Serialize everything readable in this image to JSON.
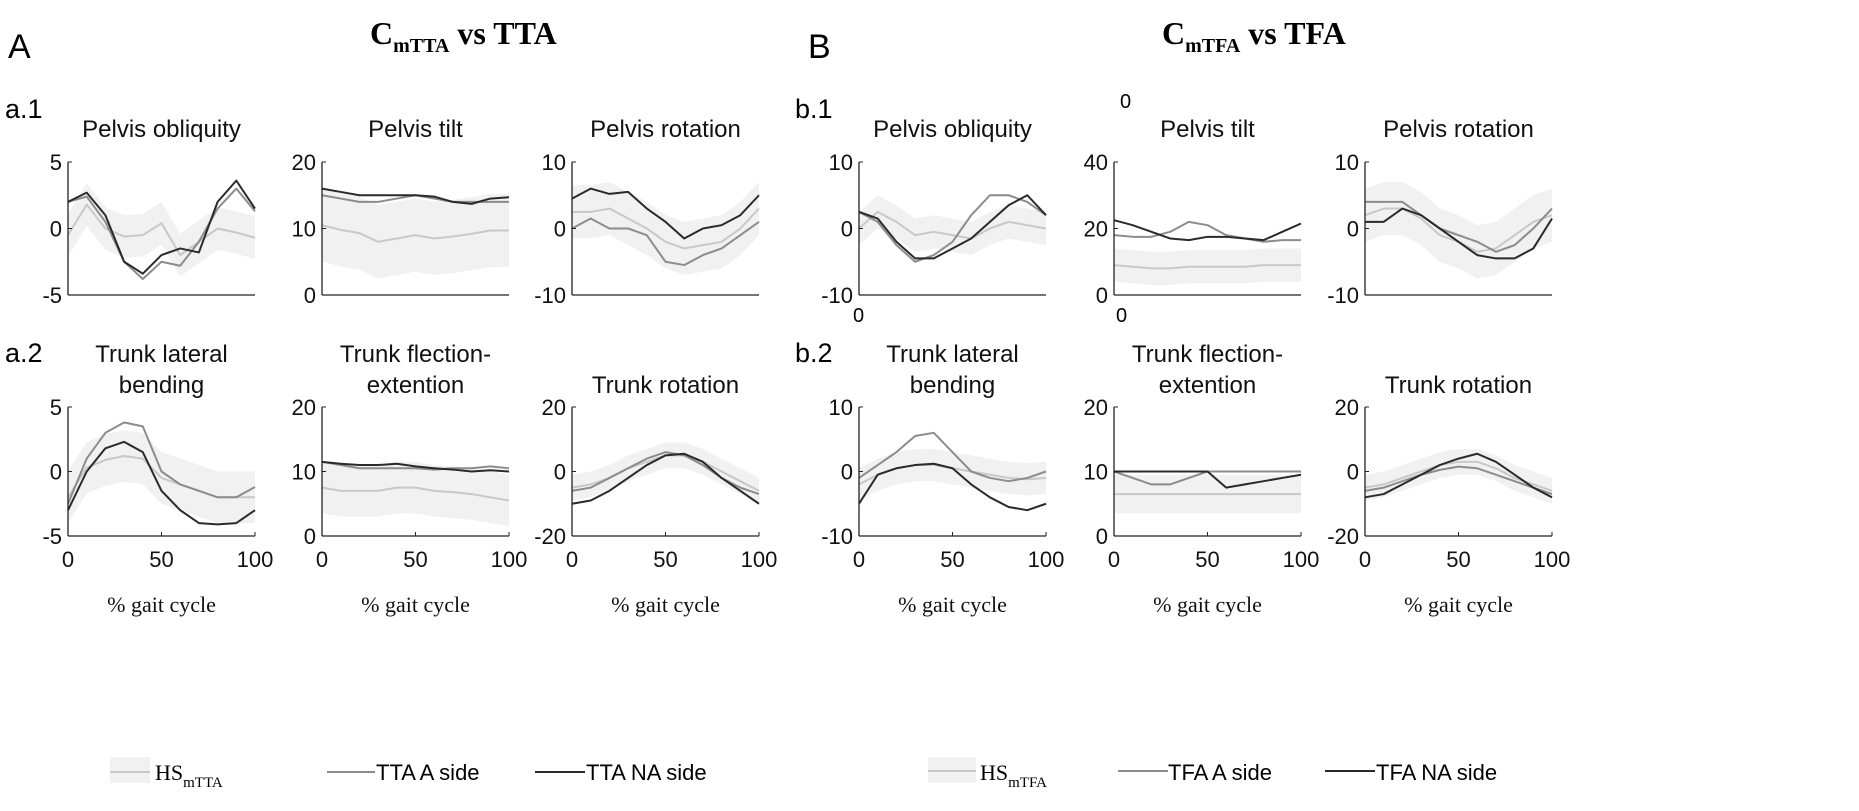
{
  "panels": [
    {
      "letter": "A",
      "title_main": "C",
      "title_sub": "mTTA",
      "title_rest": " vs TTA",
      "row_labels": [
        "a.1",
        "a.2"
      ],
      "legend": {
        "hs_main": "HS",
        "hs_sub": "mTTA",
        "a_side": "TTA A side",
        "na_side": "TTA NA side"
      }
    },
    {
      "letter": "B",
      "title_main": "C",
      "title_sub": "mTFA",
      "title_rest": " vs TFA",
      "row_labels": [
        "b.1",
        "b.2"
      ],
      "legend": {
        "hs_main": "HS",
        "hs_sub": "mTFA",
        "a_side": "TFA A side",
        "na_side": "TFA NA side"
      }
    }
  ],
  "stray_labels": [
    "0",
    "0",
    "0"
  ],
  "colors": {
    "hs_band": "#f1f1f1",
    "hs_line": "#c8c8c8",
    "a_side": "#8c8c8c",
    "na_side": "#2a2a2a"
  },
  "chart_data": [
    {
      "type": "line",
      "panel": "A",
      "title": [
        "Pelvis obliquity"
      ],
      "ylim": [
        -5,
        5
      ],
      "yticks": [
        -5,
        0,
        5
      ],
      "xlim": [
        0,
        100
      ],
      "xticks": [],
      "xlabel": "",
      "x": [
        0,
        10,
        20,
        30,
        40,
        50,
        60,
        70,
        80,
        90,
        100
      ],
      "series": [
        {
          "name": "HS",
          "values": [
            -0.5,
            1.8,
            0,
            -0.6,
            -0.5,
            0.4,
            -2,
            -1,
            0,
            -0.3,
            -0.7
          ],
          "band": 1.6
        },
        {
          "name": "A side",
          "values": [
            2,
            2.4,
            0.5,
            -2.5,
            -3.8,
            -2.5,
            -2.8,
            -1,
            1.5,
            3,
            1.3
          ]
        },
        {
          "name": "NA side",
          "values": [
            2,
            2.7,
            1,
            -2.5,
            -3.4,
            -2,
            -1.5,
            -1.8,
            2,
            3.6,
            1.5
          ]
        }
      ]
    },
    {
      "type": "line",
      "panel": "A",
      "title": [
        "Pelvis tilt"
      ],
      "ylim": [
        0,
        20
      ],
      "yticks": [
        0,
        10,
        20
      ],
      "xlim": [
        0,
        100
      ],
      "xticks": [],
      "xlabel": "",
      "x": [
        0,
        10,
        20,
        30,
        40,
        50,
        60,
        70,
        80,
        90,
        100
      ],
      "series": [
        {
          "name": "HS",
          "values": [
            10.5,
            9.8,
            9.3,
            8,
            8.5,
            9,
            8.5,
            8.8,
            9.2,
            9.7,
            9.7
          ],
          "band": 5.5
        },
        {
          "name": "A side",
          "values": [
            15,
            14.5,
            14,
            14,
            14.5,
            15,
            14.5,
            14,
            14,
            14,
            14
          ]
        },
        {
          "name": "NA side",
          "values": [
            16,
            15.5,
            15,
            15,
            15,
            15,
            14.8,
            14,
            13.7,
            14.5,
            14.7
          ]
        }
      ]
    },
    {
      "type": "line",
      "panel": "A",
      "title": [
        "Pelvis rotation"
      ],
      "ylim": [
        -10,
        10
      ],
      "yticks": [
        -10,
        0,
        10
      ],
      "xlim": [
        0,
        100
      ],
      "xticks": [],
      "xlabel": "",
      "x": [
        0,
        10,
        20,
        30,
        40,
        50,
        60,
        70,
        80,
        90,
        100
      ],
      "series": [
        {
          "name": "HS",
          "values": [
            2.5,
            2.5,
            3,
            1.5,
            0,
            -2,
            -3,
            -2.5,
            -2,
            0,
            3
          ],
          "band": 4
        },
        {
          "name": "A side",
          "values": [
            0,
            1.5,
            0,
            0,
            -1,
            -5,
            -5.5,
            -4,
            -3,
            -1,
            1
          ]
        },
        {
          "name": "NA side",
          "values": [
            4.5,
            6,
            5.2,
            5.5,
            3,
            1,
            -1.5,
            0,
            0.5,
            2,
            5
          ]
        }
      ]
    },
    {
      "type": "line",
      "panel": "A",
      "title": [
        "Trunk lateral",
        "bending"
      ],
      "ylim": [
        -5,
        5
      ],
      "yticks": [
        -5,
        0,
        5
      ],
      "xlim": [
        0,
        100
      ],
      "xticks": [
        0,
        50,
        100
      ],
      "xlabel": "% gait cycle",
      "x": [
        0,
        10,
        20,
        30,
        40,
        50,
        60,
        70,
        80,
        90,
        100
      ],
      "series": [
        {
          "name": "HS",
          "values": [
            -2,
            0.3,
            0.9,
            1.2,
            1,
            -0.5,
            -1,
            -1.5,
            -2,
            -2,
            -2
          ],
          "band": 2
        },
        {
          "name": "A side",
          "values": [
            -2.5,
            1,
            3,
            3.8,
            3.5,
            0,
            -1,
            -1.5,
            -2,
            -2,
            -1.2
          ]
        },
        {
          "name": "NA side",
          "values": [
            -3,
            0,
            1.8,
            2.3,
            1.5,
            -1.5,
            -3,
            -4,
            -4.1,
            -4,
            -3
          ]
        }
      ]
    },
    {
      "type": "line",
      "panel": "A",
      "title": [
        "Trunk flection-",
        "extention"
      ],
      "ylim": [
        0,
        20
      ],
      "yticks": [
        0,
        10,
        20
      ],
      "xlim": [
        0,
        100
      ],
      "xticks": [
        0,
        50,
        100
      ],
      "xlabel": "% gait cycle",
      "x": [
        0,
        10,
        20,
        30,
        40,
        50,
        60,
        70,
        80,
        90,
        100
      ],
      "series": [
        {
          "name": "HS",
          "values": [
            7.5,
            7,
            7,
            7,
            7.5,
            7.5,
            7,
            6.8,
            6.5,
            6,
            5.5
          ],
          "band": 4
        },
        {
          "name": "A side",
          "values": [
            11.5,
            11,
            10.5,
            10.5,
            10.5,
            10.5,
            10.3,
            10.5,
            10.5,
            10.8,
            10.5
          ]
        },
        {
          "name": "NA side",
          "values": [
            11.5,
            11.2,
            11,
            11,
            11.2,
            10.8,
            10.5,
            10.3,
            10,
            10.2,
            10
          ]
        }
      ]
    },
    {
      "type": "line",
      "panel": "A",
      "title": [
        "Trunk rotation"
      ],
      "ylim": [
        -20,
        20
      ],
      "yticks": [
        -20,
        0,
        20
      ],
      "xlim": [
        0,
        100
      ],
      "xticks": [
        0,
        50,
        100
      ],
      "xlabel": "% gait cycle",
      "x": [
        0,
        10,
        20,
        30,
        40,
        50,
        60,
        70,
        80,
        90,
        100
      ],
      "series": [
        {
          "name": "HS",
          "values": [
            -5,
            -4,
            -2,
            1,
            3,
            5,
            5,
            3,
            0,
            -3,
            -6
          ],
          "band": 4
        },
        {
          "name": "A side",
          "values": [
            -6,
            -5,
            -2,
            1,
            4,
            6,
            5,
            2,
            -2,
            -5,
            -7
          ]
        },
        {
          "name": "NA side",
          "values": [
            -10,
            -9,
            -6,
            -2,
            2,
            5,
            5.5,
            3,
            -2,
            -6,
            -10
          ]
        }
      ]
    },
    {
      "type": "line",
      "panel": "B",
      "title": [
        "Pelvis obliquity"
      ],
      "ylim": [
        -10,
        10
      ],
      "yticks": [
        -10,
        0,
        10
      ],
      "xlim": [
        0,
        100
      ],
      "xticks": [],
      "xlabel": "",
      "x": [
        0,
        10,
        20,
        30,
        40,
        50,
        60,
        70,
        80,
        90,
        100
      ],
      "series": [
        {
          "name": "HS",
          "values": [
            0,
            2.5,
            1,
            -1,
            -0.5,
            -1,
            -1.5,
            0,
            1,
            0.5,
            0
          ],
          "band": 2.5
        },
        {
          "name": "A side",
          "values": [
            2.5,
            1,
            -2.5,
            -5,
            -4,
            -2,
            2,
            5,
            5,
            4,
            2
          ]
        },
        {
          "name": "NA side",
          "values": [
            2.5,
            1.5,
            -2,
            -4.5,
            -4.5,
            -3,
            -1.5,
            1,
            3.5,
            5,
            2
          ]
        }
      ]
    },
    {
      "type": "line",
      "panel": "B",
      "title": [
        "Pelvis tilt"
      ],
      "ylim": [
        0,
        40
      ],
      "yticks": [
        0,
        20,
        40
      ],
      "xlim": [
        0,
        100
      ],
      "xticks": [],
      "xlabel": "",
      "x": [
        0,
        10,
        20,
        30,
        40,
        50,
        60,
        70,
        80,
        90,
        100
      ],
      "series": [
        {
          "name": "HS",
          "values": [
            9,
            8.5,
            8,
            8,
            8.5,
            8.5,
            8.5,
            8.5,
            9,
            9,
            9
          ],
          "band": 5
        },
        {
          "name": "A side",
          "values": [
            18,
            17.5,
            17.5,
            19,
            22,
            21,
            18,
            17,
            16,
            16.5,
            16.5
          ]
        },
        {
          "name": "NA side",
          "values": [
            22.5,
            21,
            19,
            17,
            16.5,
            17.5,
            17.5,
            17,
            16.5,
            19,
            21.5
          ]
        }
      ]
    },
    {
      "type": "line",
      "panel": "B",
      "title": [
        "Pelvis rotation"
      ],
      "ylim": [
        -10,
        10
      ],
      "yticks": [
        -10,
        0,
        10
      ],
      "xlim": [
        0,
        100
      ],
      "xticks": [],
      "xlabel": "",
      "x": [
        0,
        10,
        20,
        30,
        40,
        50,
        60,
        70,
        80,
        90,
        100
      ],
      "series": [
        {
          "name": "HS",
          "values": [
            2,
            3,
            3,
            1.5,
            -1,
            -2,
            -3.5,
            -3,
            -1,
            1,
            2
          ],
          "band": 4
        },
        {
          "name": "A side",
          "values": [
            4,
            4,
            4,
            2,
            0,
            -1,
            -2,
            -3.5,
            -2.5,
            0,
            3
          ]
        },
        {
          "name": "NA side",
          "values": [
            1,
            1,
            3,
            2,
            0,
            -2,
            -4,
            -4.5,
            -4.5,
            -3,
            1.5
          ]
        }
      ]
    },
    {
      "type": "line",
      "panel": "B",
      "title": [
        "Trunk lateral",
        "bending"
      ],
      "ylim": [
        -10,
        10
      ],
      "yticks": [
        -10,
        0,
        10
      ],
      "xlim": [
        0,
        100
      ],
      "xticks": [
        0,
        50,
        100
      ],
      "xlabel": "% gait cycle",
      "x": [
        0,
        10,
        20,
        30,
        40,
        50,
        60,
        70,
        80,
        90,
        100
      ],
      "series": [
        {
          "name": "HS",
          "values": [
            -2,
            -0.5,
            0.5,
            1,
            1,
            0.5,
            0,
            -0.5,
            -1,
            -1.2,
            -1
          ],
          "band": 2.5
        },
        {
          "name": "A side",
          "values": [
            -1,
            1,
            3,
            5.5,
            6,
            3,
            0,
            -1,
            -1.5,
            -1,
            0
          ]
        },
        {
          "name": "NA side",
          "values": [
            -5,
            -0.5,
            0.5,
            1,
            1.2,
            0.5,
            -2,
            -4,
            -5.5,
            -6,
            -5
          ]
        }
      ]
    },
    {
      "type": "line",
      "panel": "B",
      "title": [
        "Trunk flection-",
        "extention"
      ],
      "ylim": [
        0,
        20
      ],
      "yticks": [
        0,
        10,
        20
      ],
      "xlim": [
        0,
        100
      ],
      "xticks": [
        0,
        50,
        100
      ],
      "xlabel": "% gait cycle",
      "x": [
        0,
        10,
        20,
        30,
        40,
        50,
        60,
        70,
        80,
        90,
        100
      ],
      "series": [
        {
          "name": "HS",
          "values": [
            6.5,
            6.5,
            6.5,
            6.5,
            6.5,
            6.5,
            6.5,
            6.5,
            6.5,
            6.5,
            6.5
          ],
          "band": 3
        },
        {
          "name": "A side",
          "values": [
            10,
            9,
            8,
            8,
            9,
            10,
            10,
            10,
            10,
            10,
            10
          ]
        },
        {
          "name": "NA side",
          "values": [
            10,
            10,
            10,
            10,
            10,
            10,
            7.5,
            8,
            8.5,
            9,
            9.5
          ]
        }
      ]
    },
    {
      "type": "line",
      "panel": "B",
      "title": [
        "Trunk rotation"
      ],
      "ylim": [
        -20,
        20
      ],
      "yticks": [
        -20,
        0,
        20
      ],
      "xlim": [
        0,
        100
      ],
      "xticks": [
        0,
        50,
        100
      ],
      "xlabel": "% gait cycle",
      "x": [
        0,
        10,
        20,
        30,
        40,
        50,
        60,
        70,
        80,
        90,
        100
      ],
      "series": [
        {
          "name": "HS",
          "values": [
            -5,
            -4,
            -2,
            0,
            2,
            3,
            3,
            1,
            -2,
            -4,
            -6
          ],
          "band": 4
        },
        {
          "name": "A side",
          "values": [
            -6,
            -5,
            -3,
            -1,
            0.5,
            1.5,
            1,
            -1,
            -3,
            -5,
            -7
          ]
        },
        {
          "name": "NA side",
          "values": [
            -8,
            -7,
            -4,
            -1,
            2,
            4,
            5.5,
            3,
            -1,
            -5,
            -8
          ]
        }
      ]
    }
  ]
}
